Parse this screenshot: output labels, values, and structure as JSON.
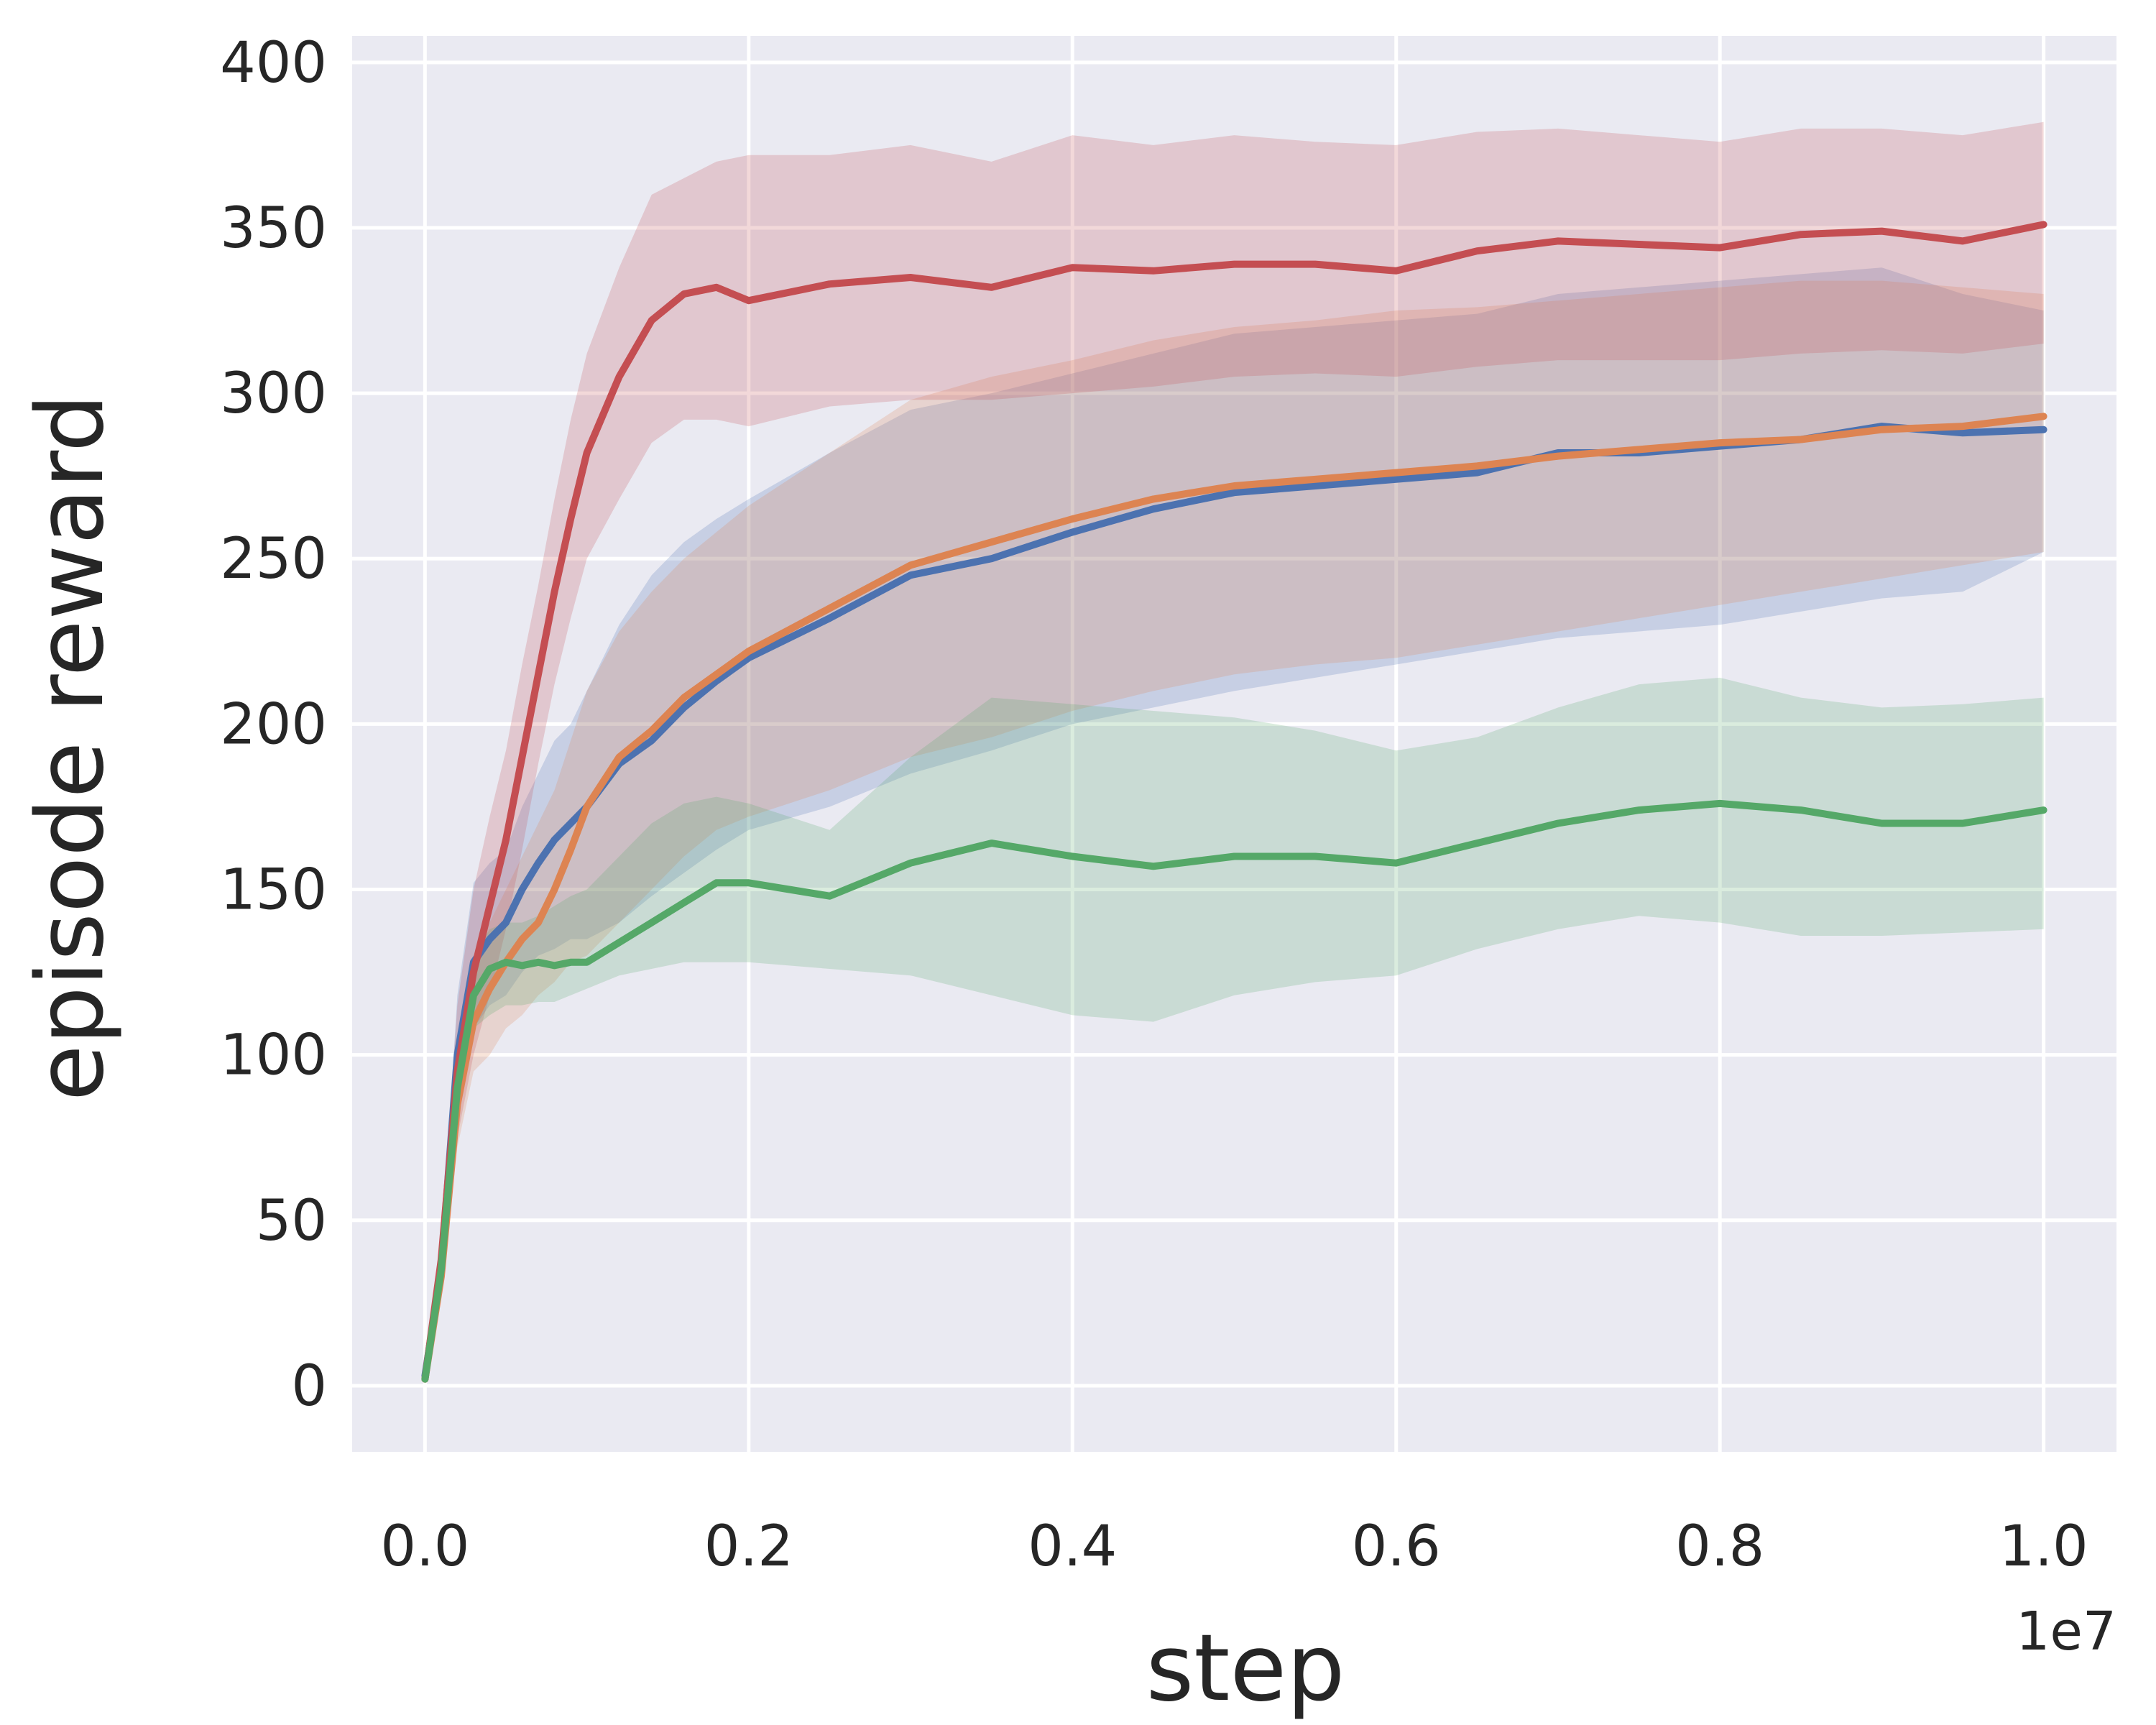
{
  "chart_data": {
    "type": "line",
    "title": "",
    "xlabel": "step",
    "ylabel": "episode reward",
    "x_offset_label": "1e7",
    "xlim": [
      -0.045,
      1.045
    ],
    "ylim": [
      -20,
      408
    ],
    "xticks": [
      0.0,
      0.2,
      0.4,
      0.6,
      0.8,
      1.0
    ],
    "xtick_labels": [
      "0.0",
      "0.2",
      "0.4",
      "0.6",
      "0.8",
      "1.0"
    ],
    "yticks": [
      0,
      50,
      100,
      150,
      200,
      250,
      300,
      350,
      400
    ],
    "ytick_labels": [
      "0",
      "50",
      "100",
      "150",
      "200",
      "250",
      "300",
      "350",
      "400"
    ],
    "grid": true,
    "background": "#eaeaf2",
    "x": [
      0.0,
      0.01,
      0.02,
      0.03,
      0.04,
      0.05,
      0.06,
      0.07,
      0.08,
      0.09,
      0.1,
      0.12,
      0.14,
      0.16,
      0.18,
      0.2,
      0.25,
      0.3,
      0.35,
      0.4,
      0.45,
      0.5,
      0.55,
      0.6,
      0.65,
      0.7,
      0.75,
      0.8,
      0.85,
      0.9,
      0.95,
      1.0
    ],
    "series": [
      {
        "name": "blue",
        "color": "#4c72b0",
        "values": [
          3,
          35,
          100,
          128,
          135,
          140,
          150,
          158,
          165,
          170,
          175,
          188,
          195,
          205,
          213,
          220,
          232,
          245,
          250,
          258,
          265,
          270,
          272,
          274,
          276,
          282,
          282,
          284,
          286,
          290,
          288,
          289
        ],
        "lower": [
          1,
          30,
          88,
          108,
          115,
          118,
          125,
          130,
          132,
          135,
          135,
          140,
          148,
          155,
          162,
          168,
          175,
          185,
          192,
          200,
          205,
          210,
          214,
          218,
          222,
          226,
          228,
          230,
          234,
          238,
          240,
          252
        ],
        "upper": [
          6,
          40,
          118,
          152,
          158,
          162,
          175,
          185,
          195,
          200,
          210,
          230,
          245,
          255,
          262,
          268,
          282,
          295,
          300,
          306,
          312,
          318,
          320,
          322,
          324,
          330,
          332,
          334,
          336,
          338,
          330,
          325
        ]
      },
      {
        "name": "orange",
        "color": "#dd8452",
        "values": [
          2,
          33,
          85,
          110,
          120,
          128,
          135,
          140,
          150,
          162,
          175,
          190,
          198,
          208,
          215,
          222,
          235,
          248,
          255,
          262,
          268,
          272,
          274,
          276,
          278,
          281,
          283,
          285,
          286,
          289,
          290,
          293
        ],
        "lower": [
          1,
          28,
          72,
          95,
          100,
          108,
          112,
          118,
          122,
          128,
          130,
          140,
          150,
          160,
          168,
          172,
          180,
          190,
          196,
          204,
          210,
          215,
          218,
          220,
          224,
          228,
          232,
          236,
          240,
          244,
          248,
          252
        ],
        "upper": [
          5,
          38,
          98,
          128,
          140,
          150,
          160,
          170,
          180,
          195,
          210,
          228,
          240,
          250,
          258,
          266,
          282,
          298,
          305,
          310,
          316,
          320,
          322,
          325,
          326,
          328,
          330,
          332,
          334,
          334,
          332,
          330
        ]
      },
      {
        "name": "red",
        "color": "#c44e52",
        "values": [
          2,
          38,
          95,
          125,
          145,
          165,
          190,
          215,
          240,
          262,
          282,
          305,
          322,
          330,
          332,
          328,
          333,
          335,
          332,
          338,
          337,
          339,
          339,
          337,
          343,
          346,
          345,
          344,
          348,
          349,
          346,
          351
        ],
        "lower": [
          1,
          30,
          75,
          100,
          118,
          138,
          162,
          188,
          212,
          232,
          250,
          268,
          285,
          292,
          292,
          290,
          296,
          298,
          298,
          300,
          302,
          305,
          306,
          305,
          308,
          310,
          310,
          310,
          312,
          313,
          312,
          315
        ],
        "upper": [
          5,
          45,
          115,
          150,
          172,
          192,
          218,
          242,
          268,
          292,
          312,
          338,
          360,
          365,
          370,
          372,
          372,
          375,
          370,
          378,
          375,
          378,
          376,
          375,
          379,
          380,
          378,
          376,
          380,
          380,
          378,
          382
        ]
      },
      {
        "name": "green",
        "color": "#55a868",
        "values": [
          2,
          35,
          90,
          118,
          126,
          128,
          127,
          128,
          127,
          128,
          128,
          134,
          140,
          146,
          152,
          152,
          148,
          158,
          164,
          160,
          157,
          160,
          160,
          158,
          164,
          170,
          174,
          176,
          174,
          170,
          170,
          174
        ],
        "lower": [
          1,
          30,
          80,
          108,
          112,
          115,
          115,
          116,
          116,
          118,
          120,
          124,
          126,
          128,
          128,
          128,
          126,
          124,
          118,
          112,
          110,
          118,
          122,
          124,
          132,
          138,
          142,
          140,
          136,
          136,
          137,
          138
        ],
        "upper": [
          5,
          40,
          100,
          130,
          138,
          140,
          140,
          142,
          145,
          148,
          150,
          160,
          170,
          176,
          178,
          176,
          168,
          190,
          208,
          206,
          204,
          202,
          198,
          192,
          196,
          205,
          212,
          214,
          208,
          205,
          206,
          208
        ]
      }
    ]
  }
}
